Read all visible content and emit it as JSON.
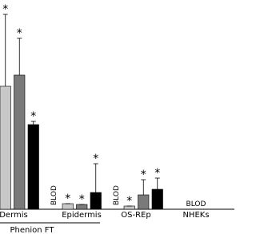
{
  "chart_data": {
    "type": "bar",
    "categories": [
      "Dermis",
      "Epidermis",
      "OS-REp",
      "NHEKs"
    ],
    "series": [
      {
        "color": "#c8c8c8",
        "values": [
          154,
          7,
          4,
          null
        ],
        "errors": [
          90,
          0,
          0,
          null
        ],
        "markers": [
          "*",
          "*",
          "*",
          null
        ]
      },
      {
        "color": "#7a7a7a",
        "values": [
          168,
          6,
          18,
          null
        ],
        "errors": [
          46,
          0,
          19,
          null
        ],
        "markers": [
          "*",
          "*",
          "*",
          null
        ]
      },
      {
        "color": "#000000",
        "values": [
          106,
          21,
          25,
          null
        ],
        "errors": [
          4,
          36,
          14,
          null
        ],
        "markers": [
          "*",
          "*",
          "*",
          null
        ]
      }
    ],
    "ylim": [
      0,
      262
    ],
    "annotations": [
      "BLOD",
      "BLOD",
      "BLOD"
    ],
    "group_label": "Phenion FT"
  }
}
